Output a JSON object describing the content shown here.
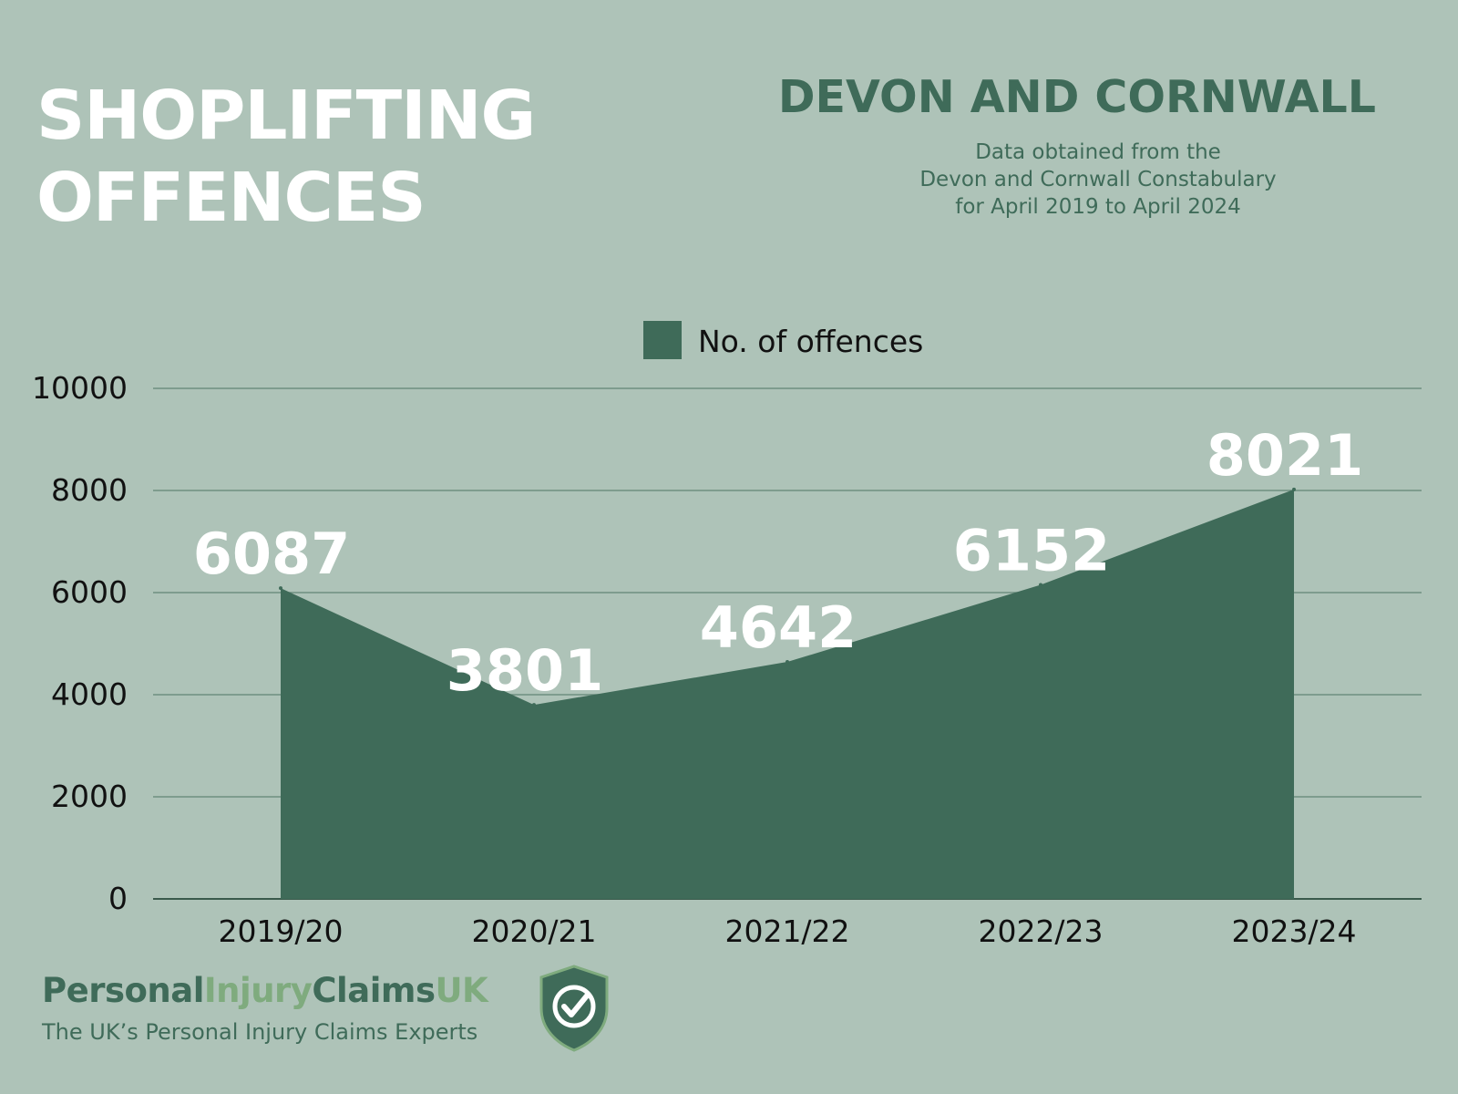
{
  "title_lines": [
    "SHOPLIFTING",
    "OFFENCES"
  ],
  "region": "DEVON AND CORNWALL",
  "source_lines": [
    "Data obtained from the",
    "Devon and Cornwall Constabulary",
    "for April 2019 to April 2024"
  ],
  "brand": {
    "part1": "Personal",
    "part2": "Injury",
    "part3": "Claims",
    "part4": "UK",
    "tagline": "The UK’s Personal Injury Claims Experts",
    "icon": "shield-check-icon"
  },
  "colors": {
    "background": "#aec3b8",
    "area": "#3f6b59",
    "brand_light": "#7fab7e"
  },
  "chart_data": {
    "type": "area",
    "categories": [
      "2019/20",
      "2020/21",
      "2021/22",
      "2022/23",
      "2023/24"
    ],
    "series": [
      {
        "name": "No. of offences",
        "values": [
          6087,
          3801,
          4642,
          6152,
          8021
        ]
      }
    ],
    "data_labels": [
      "6087",
      "3801",
      "4642",
      "6152",
      "8021"
    ],
    "yticks": [
      "0",
      "2000",
      "4000",
      "6000",
      "8000",
      "10000"
    ],
    "ylim": [
      0,
      10000
    ],
    "grid": true,
    "legend_position": "top-center"
  }
}
